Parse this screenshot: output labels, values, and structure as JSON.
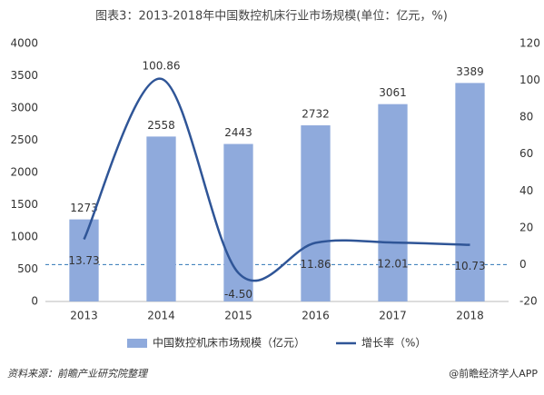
{
  "chart_data": {
    "type": "bar-line",
    "title": "图表3：2013-2018年中国数控机床行业市场规模(单位：亿元，%)",
    "categories": [
      "2013",
      "2014",
      "2015",
      "2016",
      "2017",
      "2018"
    ],
    "series": [
      {
        "name": "中国数控机床市场规模（亿元）",
        "type": "bar",
        "color": "#8faadc",
        "values": [
          1273,
          2558,
          2443,
          2732,
          3061,
          3389
        ]
      },
      {
        "name": "增长率（%）",
        "type": "line",
        "axis": "y2",
        "color": "#2f5597",
        "smooth": true,
        "values": [
          13.73,
          100.86,
          -4.5,
          11.86,
          12.01,
          10.73
        ],
        "value_labels": [
          "13.73",
          "100.86",
          "-4.50",
          "11.86",
          "12.01",
          "10.73"
        ]
      }
    ],
    "ylim": [
      0,
      4000
    ],
    "yticks": [
      0,
      500,
      1000,
      1500,
      2000,
      2500,
      3000,
      3500,
      4000
    ],
    "y2lim": [
      -20,
      120
    ],
    "y2ticks": [
      -20,
      0,
      20,
      40,
      60,
      80,
      100,
      120
    ],
    "reference_line": {
      "axis": "y2",
      "value": 0,
      "style": "dashed",
      "color": "#2f75b5"
    },
    "grid": false,
    "legend": "bottom",
    "source": "资料来源：前瞻产业研究院整理",
    "credit": "@前瞻经济学人APP"
  }
}
